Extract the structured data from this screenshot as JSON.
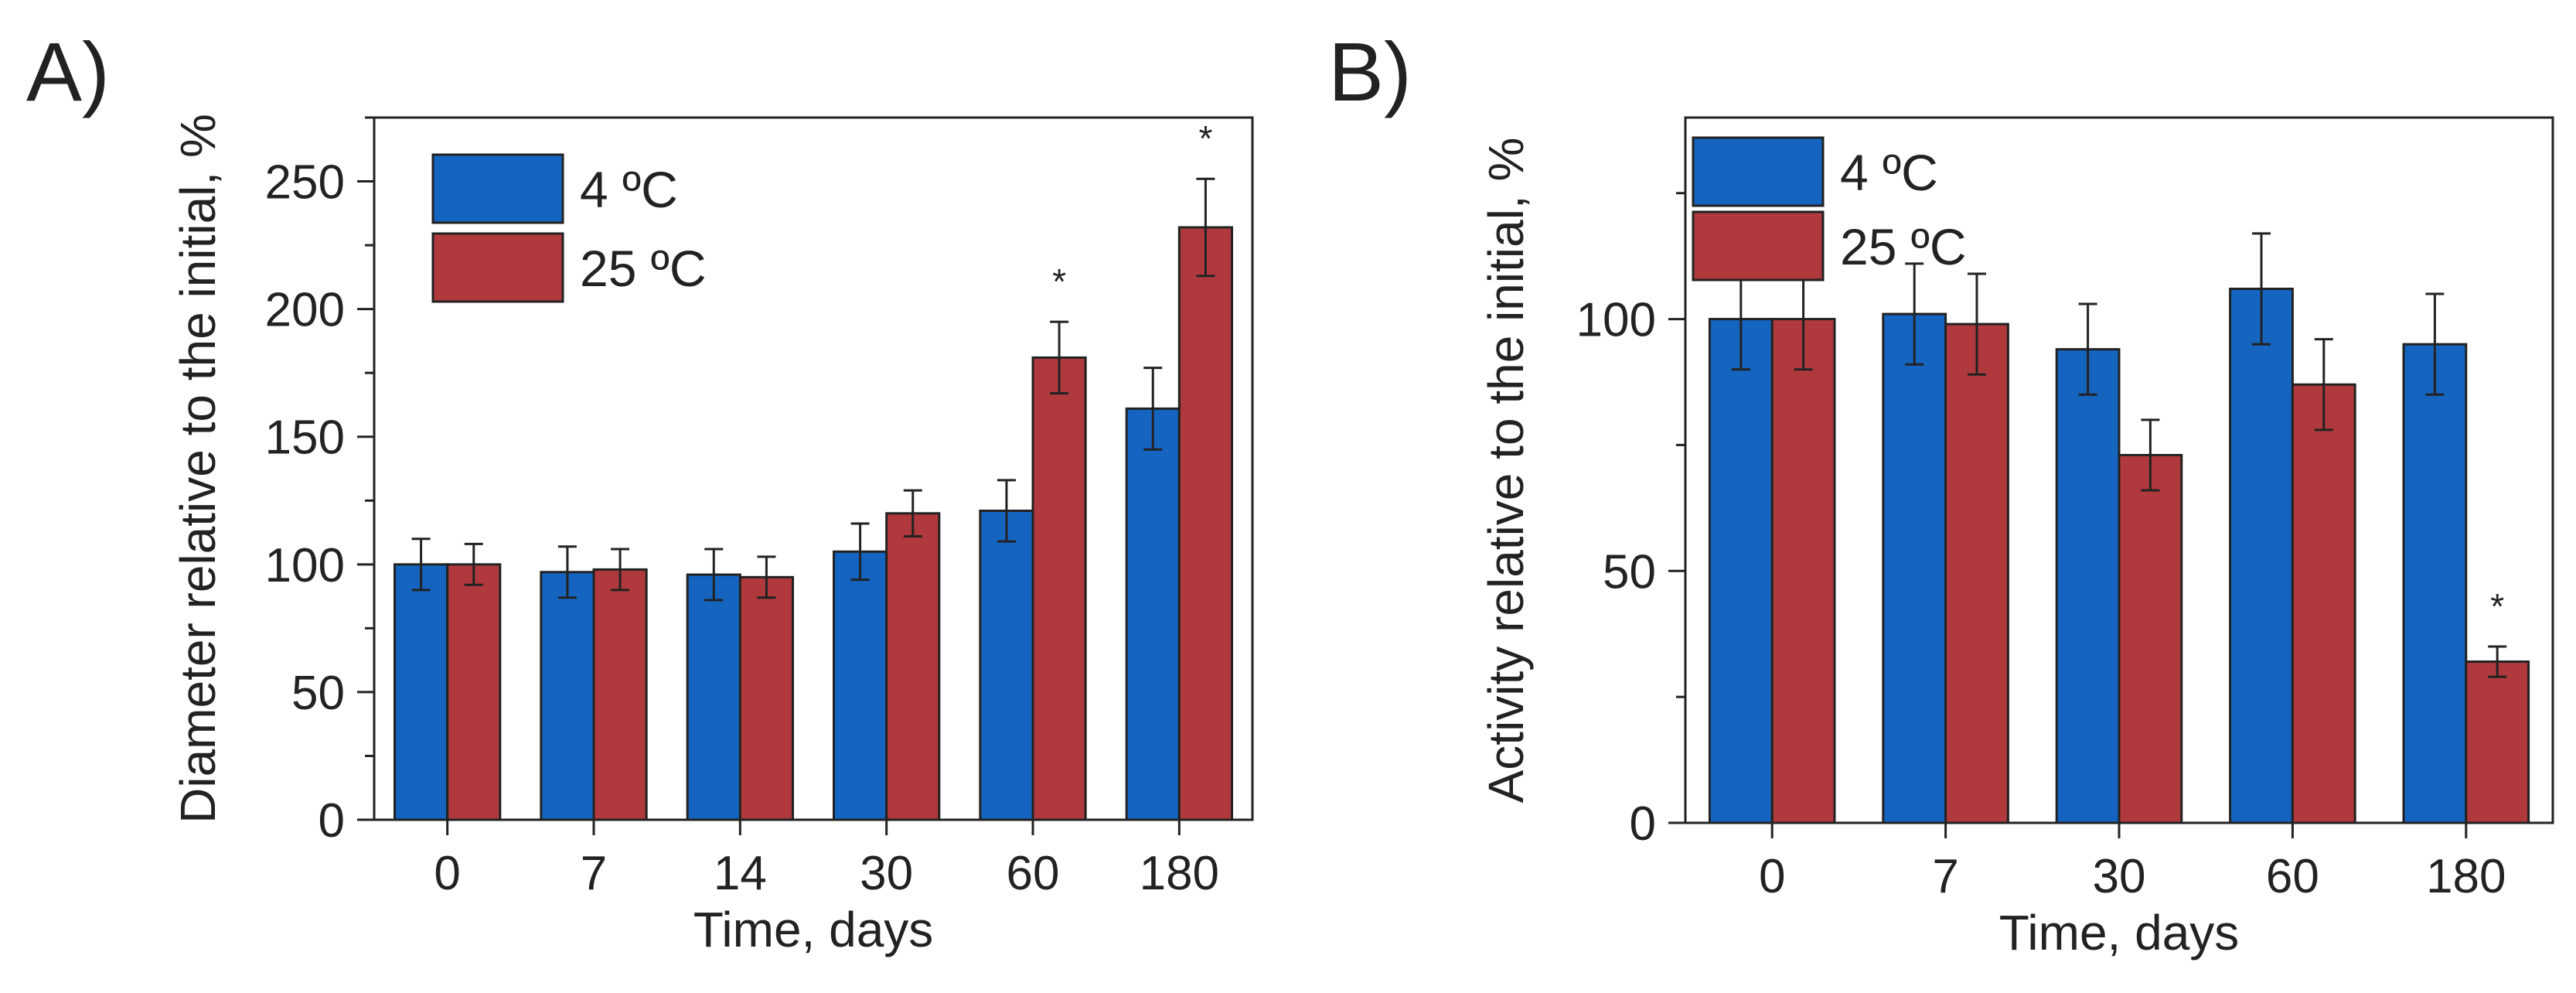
{
  "chart_data": [
    {
      "type": "bar",
      "panel_label": "A)",
      "title": "",
      "xlabel": "Time, days",
      "ylabel": "Diameter relative to the initial, %",
      "categories": [
        "0",
        "7",
        "14",
        "30",
        "60",
        "180"
      ],
      "ylim": [
        0,
        275
      ],
      "yticks": [
        0,
        50,
        100,
        150,
        200,
        250
      ],
      "series": [
        {
          "name": "4 ºC",
          "color": "#1565c0",
          "values": [
            100,
            97,
            96,
            105,
            121,
            161
          ],
          "errors": [
            10,
            10,
            10,
            11,
            12,
            16
          ]
        },
        {
          "name": "25 ºC",
          "color": "#b0393e",
          "values": [
            100,
            98,
            95,
            120,
            181,
            232
          ],
          "errors": [
            8,
            8,
            8,
            9,
            14,
            19
          ]
        }
      ],
      "significance_markers": [
        {
          "category": "60",
          "series": "25 ºC",
          "symbol": "*"
        },
        {
          "category": "180",
          "series": "25 ºC",
          "symbol": "*"
        }
      ],
      "legend_position": "top-left",
      "grid": false
    },
    {
      "type": "bar",
      "panel_label": "B)",
      "title": "",
      "xlabel": "Time, days",
      "ylabel": "Activity relative to the initial, %",
      "categories": [
        "0",
        "7",
        "30",
        "60",
        "180"
      ],
      "ylim": [
        0,
        140
      ],
      "yticks": [
        0,
        50,
        100
      ],
      "series": [
        {
          "name": "4 ºC",
          "color": "#1565c0",
          "values": [
            100,
            101,
            94,
            106,
            95
          ],
          "errors": [
            10,
            10,
            9,
            11,
            10
          ]
        },
        {
          "name": "25 ºC",
          "color": "#b0393e",
          "values": [
            100,
            99,
            73,
            87,
            32
          ],
          "errors": [
            10,
            10,
            7,
            9,
            3
          ]
        }
      ],
      "significance_markers": [
        {
          "category": "180",
          "series": "25 ºC",
          "symbol": "*"
        }
      ],
      "legend_position": "top-left",
      "grid": false
    }
  ]
}
